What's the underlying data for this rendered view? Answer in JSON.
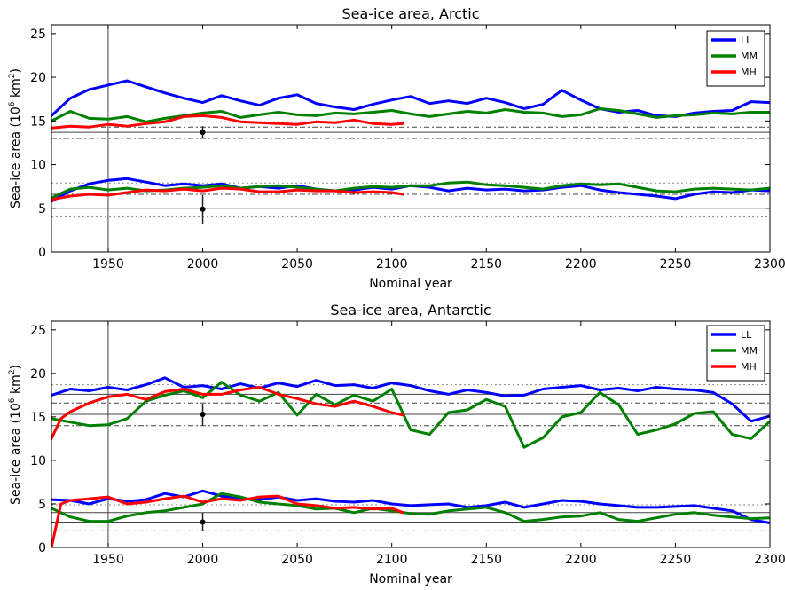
{
  "chart_data": [
    {
      "type": "line",
      "title": "Sea-ice area, Arctic",
      "xlabel": "Nominal year",
      "ylabel": "Sea-ice area (10",
      "ylabel_exp": "6",
      "ylabel_unit": " km",
      "ylabel_unit_exp": "2",
      "ylabel_close": ")",
      "xlim": [
        1920,
        2300
      ],
      "ylim": [
        0,
        26
      ],
      "xticks": [
        "1950",
        "2000",
        "2050",
        "2100",
        "2150",
        "2200",
        "2250",
        "2300"
      ],
      "yticks": [
        "0",
        "5",
        "10",
        "15",
        "20",
        "25"
      ],
      "legend_position": "top-right",
      "vline_x": 1950,
      "observation_markers": [
        {
          "x": 2000,
          "y": 13.7,
          "err": [
            13.0,
            14.4
          ]
        },
        {
          "x": 2000,
          "y": 4.9,
          "err": [
            3.2,
            6.5
          ]
        }
      ],
      "reference_lines": [
        {
          "y": 14.9,
          "style": "dotted"
        },
        {
          "y": 14.3,
          "style": "dashdot"
        },
        {
          "y": 13.7,
          "style": "solid"
        },
        {
          "y": 13.0,
          "style": "dashdot"
        },
        {
          "y": 7.9,
          "style": "dotted"
        },
        {
          "y": 6.6,
          "style": "dashdot"
        },
        {
          "y": 5.0,
          "style": "solid"
        },
        {
          "y": 4.0,
          "style": "dotted"
        },
        {
          "y": 3.2,
          "style": "dashdot"
        }
      ],
      "series": [
        {
          "name": "LL",
          "color": "#0000ff",
          "x": [
            1920,
            1930,
            1940,
            1950,
            1960,
            1970,
            1980,
            1990,
            2000,
            2010,
            2020,
            2030,
            2040,
            2050,
            2060,
            2070,
            2080,
            2090,
            2100,
            2110,
            2120,
            2130,
            2140,
            2150,
            2160,
            2170,
            2180,
            2190,
            2200,
            2210,
            2220,
            2230,
            2240,
            2250,
            2260,
            2270,
            2280,
            2290,
            2300
          ],
          "values": [
            15.6,
            17.6,
            18.6,
            19.1,
            19.6,
            18.9,
            18.2,
            17.6,
            17.1,
            17.9,
            17.3,
            16.8,
            17.6,
            18.0,
            17.0,
            16.6,
            16.3,
            16.9,
            17.4,
            17.8,
            17.0,
            17.3,
            17.0,
            17.6,
            17.1,
            16.4,
            16.9,
            18.5,
            17.4,
            16.4,
            16.0,
            16.2,
            15.6,
            15.5,
            15.9,
            16.1,
            16.2,
            17.2,
            17.1
          ]
        },
        {
          "name": "LL",
          "color": "#0000ff",
          "x": [
            1920,
            1930,
            1940,
            1950,
            1960,
            1970,
            1980,
            1990,
            2000,
            2010,
            2020,
            2030,
            2040,
            2050,
            2060,
            2070,
            2080,
            2090,
            2100,
            2110,
            2120,
            2130,
            2140,
            2150,
            2160,
            2170,
            2180,
            2190,
            2200,
            2210,
            2220,
            2230,
            2240,
            2250,
            2260,
            2270,
            2280,
            2290,
            2300
          ],
          "values": [
            5.8,
            7.0,
            7.8,
            8.2,
            8.4,
            8.0,
            7.6,
            7.8,
            7.6,
            7.8,
            7.3,
            7.5,
            7.3,
            7.6,
            7.2,
            7.0,
            7.1,
            7.4,
            7.2,
            7.6,
            7.4,
            7.0,
            7.3,
            7.1,
            7.2,
            7.0,
            7.1,
            7.4,
            7.6,
            7.1,
            6.8,
            6.6,
            6.4,
            6.1,
            6.6,
            6.9,
            6.8,
            7.1,
            7.0
          ]
        },
        {
          "name": "MM",
          "color": "#008000",
          "x": [
            1920,
            1930,
            1940,
            1950,
            1960,
            1970,
            1980,
            1990,
            2000,
            2010,
            2020,
            2030,
            2040,
            2050,
            2060,
            2070,
            2080,
            2090,
            2100,
            2110,
            2120,
            2130,
            2140,
            2150,
            2160,
            2170,
            2180,
            2190,
            2200,
            2210,
            2220,
            2230,
            2240,
            2250,
            2260,
            2270,
            2280,
            2290,
            2300
          ],
          "values": [
            15.0,
            16.1,
            15.3,
            15.2,
            15.5,
            14.9,
            15.3,
            15.6,
            15.9,
            16.1,
            15.4,
            15.7,
            16.0,
            15.7,
            15.6,
            15.9,
            15.8,
            16.0,
            16.2,
            15.8,
            15.5,
            15.8,
            16.1,
            15.9,
            16.3,
            16.0,
            15.9,
            15.5,
            15.7,
            16.4,
            16.2,
            15.8,
            15.4,
            15.6,
            15.7,
            15.9,
            15.8,
            16.0,
            16.0
          ]
        },
        {
          "name": "MM",
          "color": "#008000",
          "x": [
            1920,
            1930,
            1940,
            1950,
            1960,
            1970,
            1980,
            1990,
            2000,
            2010,
            2020,
            2030,
            2040,
            2050,
            2060,
            2070,
            2080,
            2090,
            2100,
            2110,
            2120,
            2130,
            2140,
            2150,
            2160,
            2170,
            2180,
            2190,
            2200,
            2210,
            2220,
            2230,
            2240,
            2250,
            2260,
            2270,
            2280,
            2290,
            2300
          ],
          "values": [
            6.2,
            7.2,
            7.4,
            7.1,
            7.3,
            7.0,
            7.1,
            7.3,
            7.4,
            7.6,
            7.3,
            7.5,
            7.6,
            7.4,
            7.2,
            7.0,
            7.3,
            7.5,
            7.4,
            7.6,
            7.6,
            7.9,
            8.0,
            7.7,
            7.6,
            7.4,
            7.2,
            7.6,
            7.8,
            7.7,
            7.8,
            7.4,
            7.0,
            6.9,
            7.2,
            7.3,
            7.2,
            7.1,
            7.3
          ]
        },
        {
          "name": "MH",
          "color": "#ff0000",
          "x": [
            1920,
            1930,
            1940,
            1950,
            1960,
            1970,
            1980,
            1990,
            2000,
            2010,
            2020,
            2030,
            2040,
            2050,
            2060,
            2070,
            2080,
            2090,
            2100,
            2106
          ],
          "values": [
            14.2,
            14.4,
            14.3,
            14.6,
            14.4,
            14.7,
            14.9,
            15.5,
            15.6,
            15.4,
            14.9,
            14.8,
            14.7,
            14.6,
            14.9,
            14.8,
            15.1,
            14.7,
            14.6,
            14.7
          ]
        },
        {
          "name": "MH",
          "color": "#ff0000",
          "x": [
            1920,
            1930,
            1940,
            1950,
            1960,
            1970,
            1980,
            1990,
            2000,
            2010,
            2020,
            2030,
            2040,
            2050,
            2060,
            2070,
            2080,
            2090,
            2100,
            2106
          ],
          "values": [
            6.0,
            6.4,
            6.6,
            6.5,
            6.8,
            7.1,
            7.0,
            7.2,
            7.0,
            7.3,
            7.2,
            6.9,
            6.9,
            7.1,
            7.0,
            7.0,
            6.8,
            6.9,
            6.8,
            6.6
          ]
        }
      ]
    },
    {
      "type": "line",
      "title": "Sea-ice area, Antarctic",
      "xlabel": "Nominal year",
      "ylabel": "Sea-ice area (10",
      "ylabel_exp": "6",
      "ylabel_unit": " km",
      "ylabel_unit_exp": "2",
      "ylabel_close": ")",
      "xlim": [
        1920,
        2300
      ],
      "ylim": [
        0,
        26
      ],
      "xticks": [
        "1950",
        "2000",
        "2050",
        "2100",
        "2150",
        "2200",
        "2250",
        "2300"
      ],
      "yticks": [
        "0",
        "5",
        "10",
        "15",
        "20",
        "25"
      ],
      "legend_position": "top-right",
      "vline_x": 1950,
      "observation_markers": [
        {
          "x": 2000,
          "y": 15.3,
          "err": [
            14.0,
            16.5
          ]
        },
        {
          "x": 2000,
          "y": 2.9,
          "err": [
            1.9,
            4.0
          ]
        }
      ],
      "reference_lines": [
        {
          "y": 18.7,
          "style": "dotted"
        },
        {
          "y": 17.6,
          "style": "solid"
        },
        {
          "y": 16.6,
          "style": "dashdot"
        },
        {
          "y": 15.3,
          "style": "solid"
        },
        {
          "y": 14.0,
          "style": "dashdot"
        },
        {
          "y": 4.9,
          "style": "dotted"
        },
        {
          "y": 4.0,
          "style": "solid"
        },
        {
          "y": 2.9,
          "style": "solid"
        },
        {
          "y": 1.9,
          "style": "dashdot"
        }
      ],
      "series": [
        {
          "name": "LL",
          "color": "#0000ff",
          "x": [
            1920,
            1930,
            1940,
            1950,
            1960,
            1970,
            1980,
            1990,
            2000,
            2010,
            2020,
            2030,
            2040,
            2050,
            2060,
            2070,
            2080,
            2090,
            2100,
            2110,
            2120,
            2130,
            2140,
            2150,
            2160,
            2170,
            2180,
            2190,
            2200,
            2210,
            2220,
            2230,
            2240,
            2250,
            2260,
            2270,
            2280,
            2290,
            2300
          ],
          "values": [
            17.5,
            18.2,
            18.0,
            18.4,
            18.1,
            18.7,
            19.5,
            18.4,
            18.6,
            18.2,
            18.8,
            18.3,
            18.9,
            18.5,
            19.2,
            18.6,
            18.7,
            18.3,
            18.9,
            18.6,
            18.0,
            17.6,
            18.1,
            17.8,
            17.4,
            17.5,
            18.2,
            18.4,
            18.6,
            18.1,
            18.3,
            18.0,
            18.4,
            18.2,
            18.1,
            17.8,
            16.5,
            14.5,
            15.1
          ]
        },
        {
          "name": "LL",
          "color": "#0000ff",
          "x": [
            1920,
            1930,
            1940,
            1950,
            1960,
            1970,
            1980,
            1990,
            2000,
            2010,
            2020,
            2030,
            2040,
            2050,
            2060,
            2070,
            2080,
            2090,
            2100,
            2110,
            2120,
            2130,
            2140,
            2150,
            2160,
            2170,
            2180,
            2190,
            2200,
            2210,
            2220,
            2230,
            2240,
            2250,
            2260,
            2270,
            2280,
            2290,
            2300
          ],
          "values": [
            5.5,
            5.4,
            5.0,
            5.6,
            5.3,
            5.5,
            6.2,
            5.8,
            6.5,
            5.9,
            5.6,
            5.5,
            5.8,
            5.4,
            5.6,
            5.3,
            5.2,
            5.4,
            5.0,
            4.8,
            4.9,
            5.0,
            4.6,
            4.8,
            5.2,
            4.6,
            5.0,
            5.4,
            5.3,
            5.0,
            4.8,
            4.6,
            4.6,
            4.7,
            4.8,
            4.5,
            4.2,
            3.2,
            2.8
          ]
        },
        {
          "name": "MM",
          "color": "#008000",
          "x": [
            1920,
            1930,
            1940,
            1950,
            1960,
            1970,
            1980,
            1990,
            2000,
            2010,
            2020,
            2030,
            2040,
            2050,
            2060,
            2070,
            2080,
            2090,
            2100,
            2110,
            2120,
            2130,
            2140,
            2150,
            2160,
            2170,
            2180,
            2190,
            2200,
            2210,
            2220,
            2230,
            2240,
            2250,
            2260,
            2270,
            2280,
            2290,
            2300
          ],
          "values": [
            14.8,
            14.4,
            14.0,
            14.1,
            14.8,
            16.8,
            17.5,
            18.0,
            17.2,
            19.0,
            17.5,
            16.8,
            17.8,
            15.2,
            17.6,
            16.4,
            17.5,
            16.8,
            18.2,
            13.5,
            13.0,
            15.5,
            15.8,
            17.0,
            16.2,
            11.5,
            12.6,
            15.0,
            15.5,
            17.8,
            16.4,
            13.0,
            13.5,
            14.2,
            15.4,
            15.6,
            13.0,
            12.5,
            14.5
          ]
        },
        {
          "name": "MM",
          "color": "#008000",
          "x": [
            1920,
            1930,
            1940,
            1950,
            1960,
            1970,
            1980,
            1990,
            2000,
            2010,
            2020,
            2030,
            2040,
            2050,
            2060,
            2070,
            2080,
            2090,
            2100,
            2110,
            2120,
            2130,
            2140,
            2150,
            2160,
            2170,
            2180,
            2190,
            2200,
            2210,
            2220,
            2230,
            2240,
            2250,
            2260,
            2270,
            2280,
            2290,
            2300
          ],
          "values": [
            4.5,
            3.5,
            3.0,
            3.0,
            3.6,
            4.0,
            4.2,
            4.6,
            5.0,
            6.2,
            5.8,
            5.2,
            5.0,
            4.8,
            4.4,
            4.5,
            4.0,
            4.5,
            4.2,
            3.9,
            3.8,
            4.2,
            4.4,
            4.6,
            4.0,
            3.0,
            3.2,
            3.5,
            3.6,
            4.0,
            3.2,
            3.0,
            3.4,
            3.8,
            4.0,
            3.7,
            3.5,
            3.3,
            3.4
          ]
        },
        {
          "name": "MH",
          "color": "#ff0000",
          "x": [
            1920,
            1925,
            1930,
            1940,
            1950,
            1960,
            1970,
            1980,
            1990,
            2000,
            2010,
            2020,
            2030,
            2040,
            2050,
            2060,
            2070,
            2080,
            2090,
            2100,
            2106
          ],
          "values": [
            12.5,
            14.8,
            15.6,
            16.6,
            17.3,
            17.6,
            17.0,
            17.9,
            18.2,
            17.6,
            17.6,
            18.1,
            18.4,
            17.6,
            17.1,
            16.5,
            16.2,
            16.8,
            16.2,
            15.5,
            15.2
          ]
        },
        {
          "name": "MH",
          "color": "#ff0000",
          "x": [
            1920,
            1925,
            1930,
            1940,
            1950,
            1960,
            1970,
            1980,
            1990,
            2000,
            2010,
            2020,
            2030,
            2040,
            2050,
            2060,
            2070,
            2080,
            2090,
            2100,
            2106
          ],
          "values": [
            0.0,
            5.0,
            5.4,
            5.6,
            5.8,
            5.0,
            5.2,
            5.6,
            5.9,
            5.2,
            5.6,
            5.4,
            5.8,
            5.9,
            5.0,
            4.8,
            4.5,
            4.6,
            4.4,
            4.5,
            4.0
          ]
        }
      ]
    }
  ],
  "legend": [
    "LL",
    "MM",
    "MH"
  ],
  "colors": {
    "LL": "#0000ff",
    "MM": "#008000",
    "MH": "#ff0000",
    "reference": "#666666",
    "observation": "#000000"
  }
}
